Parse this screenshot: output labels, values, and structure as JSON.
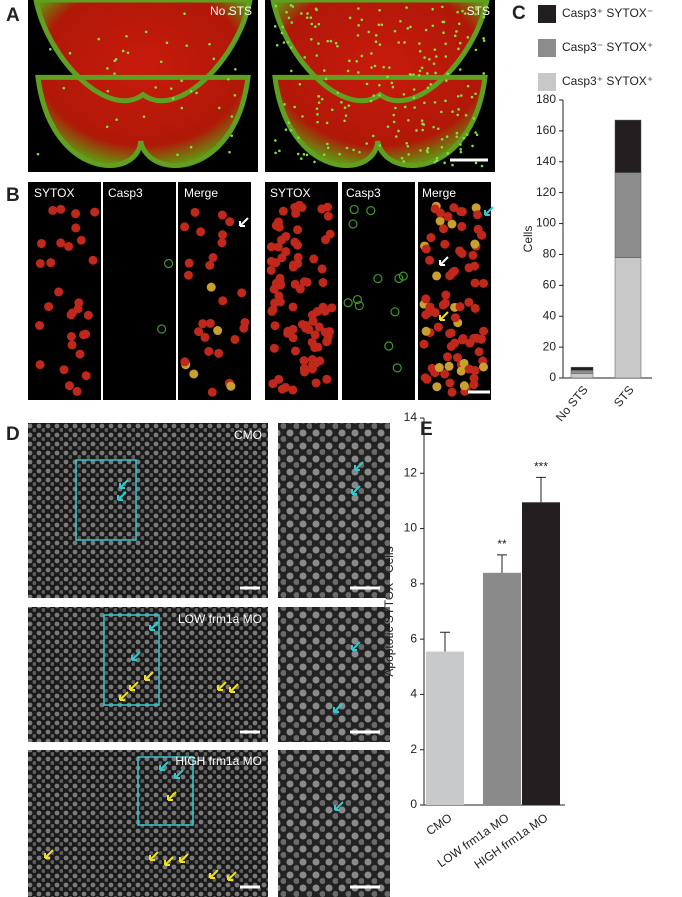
{
  "panels": {
    "labels": [
      "A",
      "B",
      "C",
      "D",
      "E"
    ]
  },
  "images": {
    "a": [
      "No STS",
      "STS"
    ],
    "b": [
      "SYTOX",
      "Casp3",
      "Merge",
      "SYTOX",
      "Casp3",
      "Merge"
    ],
    "d": [
      "CMO",
      "LOW frm1a MO",
      "HIGH frm1a MO"
    ]
  },
  "chart_data": [
    {
      "type": "stacked_bar",
      "categories": [
        "No STS",
        "STS"
      ],
      "series": [
        {
          "name": "Casp3⁺ SYTOX⁺",
          "color": "#c8c8c8",
          "values": [
            3,
            78
          ]
        },
        {
          "name": "Casp3⁻ SYTOX⁺",
          "color": "#8c8c8c",
          "values": [
            2,
            55
          ]
        },
        {
          "name": "Casp3⁺ SYTOX⁻",
          "color": "#231f20",
          "values": [
            2,
            34
          ]
        }
      ],
      "ylabel": "Cells",
      "ylim": [
        0,
        180
      ],
      "yticks": [
        0,
        20,
        40,
        60,
        80,
        100,
        120,
        140,
        160,
        180
      ]
    },
    {
      "type": "bar",
      "categories": [
        "CMO",
        "LOW frm1a MO",
        "HIGH frm1a MO"
      ],
      "values": [
        5.55,
        8.4,
        10.95
      ],
      "errors": [
        0.7,
        0.65,
        0.9
      ],
      "colors": [
        "#c8c9cb",
        "#8a8a8a",
        "#231f20"
      ],
      "significance": [
        null,
        "**",
        "***"
      ],
      "ylabel": "Apoptotic SYTOX⁺ Cells",
      "ylim": [
        0,
        14
      ],
      "yticks": [
        0,
        2,
        4,
        6,
        8,
        10,
        12,
        14
      ]
    }
  ]
}
